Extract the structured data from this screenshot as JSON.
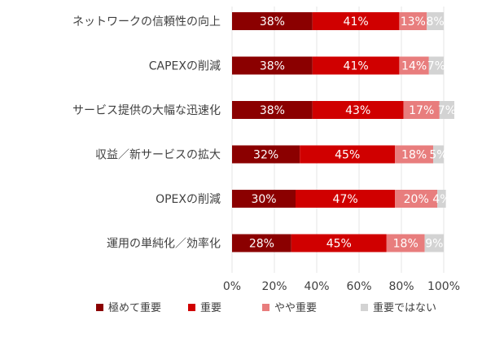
{
  "chart_data": {
    "type": "bar",
    "orientation": "horizontal",
    "stacked": true,
    "categories": [
      "ネットワークの信頼性の向上",
      "CAPEXの削減",
      "サービス提供の大幅な迅速化",
      "収益／新サービスの拡大",
      "OPEXの削減",
      "運用の単純化／効率化"
    ],
    "series": [
      {
        "name": "極めて重要",
        "color": "#8b0000",
        "values": [
          38,
          38,
          38,
          32,
          30,
          28
        ]
      },
      {
        "name": "重要",
        "color": "#d00000",
        "values": [
          41,
          41,
          43,
          45,
          47,
          45
        ]
      },
      {
        "name": "やや重要",
        "color": "#e87d7d",
        "values": [
          13,
          14,
          17,
          18,
          20,
          18
        ]
      },
      {
        "name": "重要ではない",
        "color": "#d3d3d3",
        "values": [
          8,
          7,
          7,
          5,
          4,
          9
        ]
      }
    ],
    "data_labels": [
      [
        "38%",
        "41%",
        "13%",
        "8%"
      ],
      [
        "38%",
        "41%",
        "14%",
        "7%"
      ],
      [
        "38%",
        "43%",
        "17%",
        "7%"
      ],
      [
        "32%",
        "45%",
        "18%",
        "5%"
      ],
      [
        "30%",
        "47%",
        "20%",
        "4%"
      ],
      [
        "28%",
        "45%",
        "18%",
        "9%"
      ]
    ],
    "x_ticks": [
      "0%",
      "20%",
      "40%",
      "60%",
      "80%",
      "100%"
    ],
    "xlim": [
      0,
      100
    ],
    "grid": true,
    "legend_position": "bottom"
  }
}
